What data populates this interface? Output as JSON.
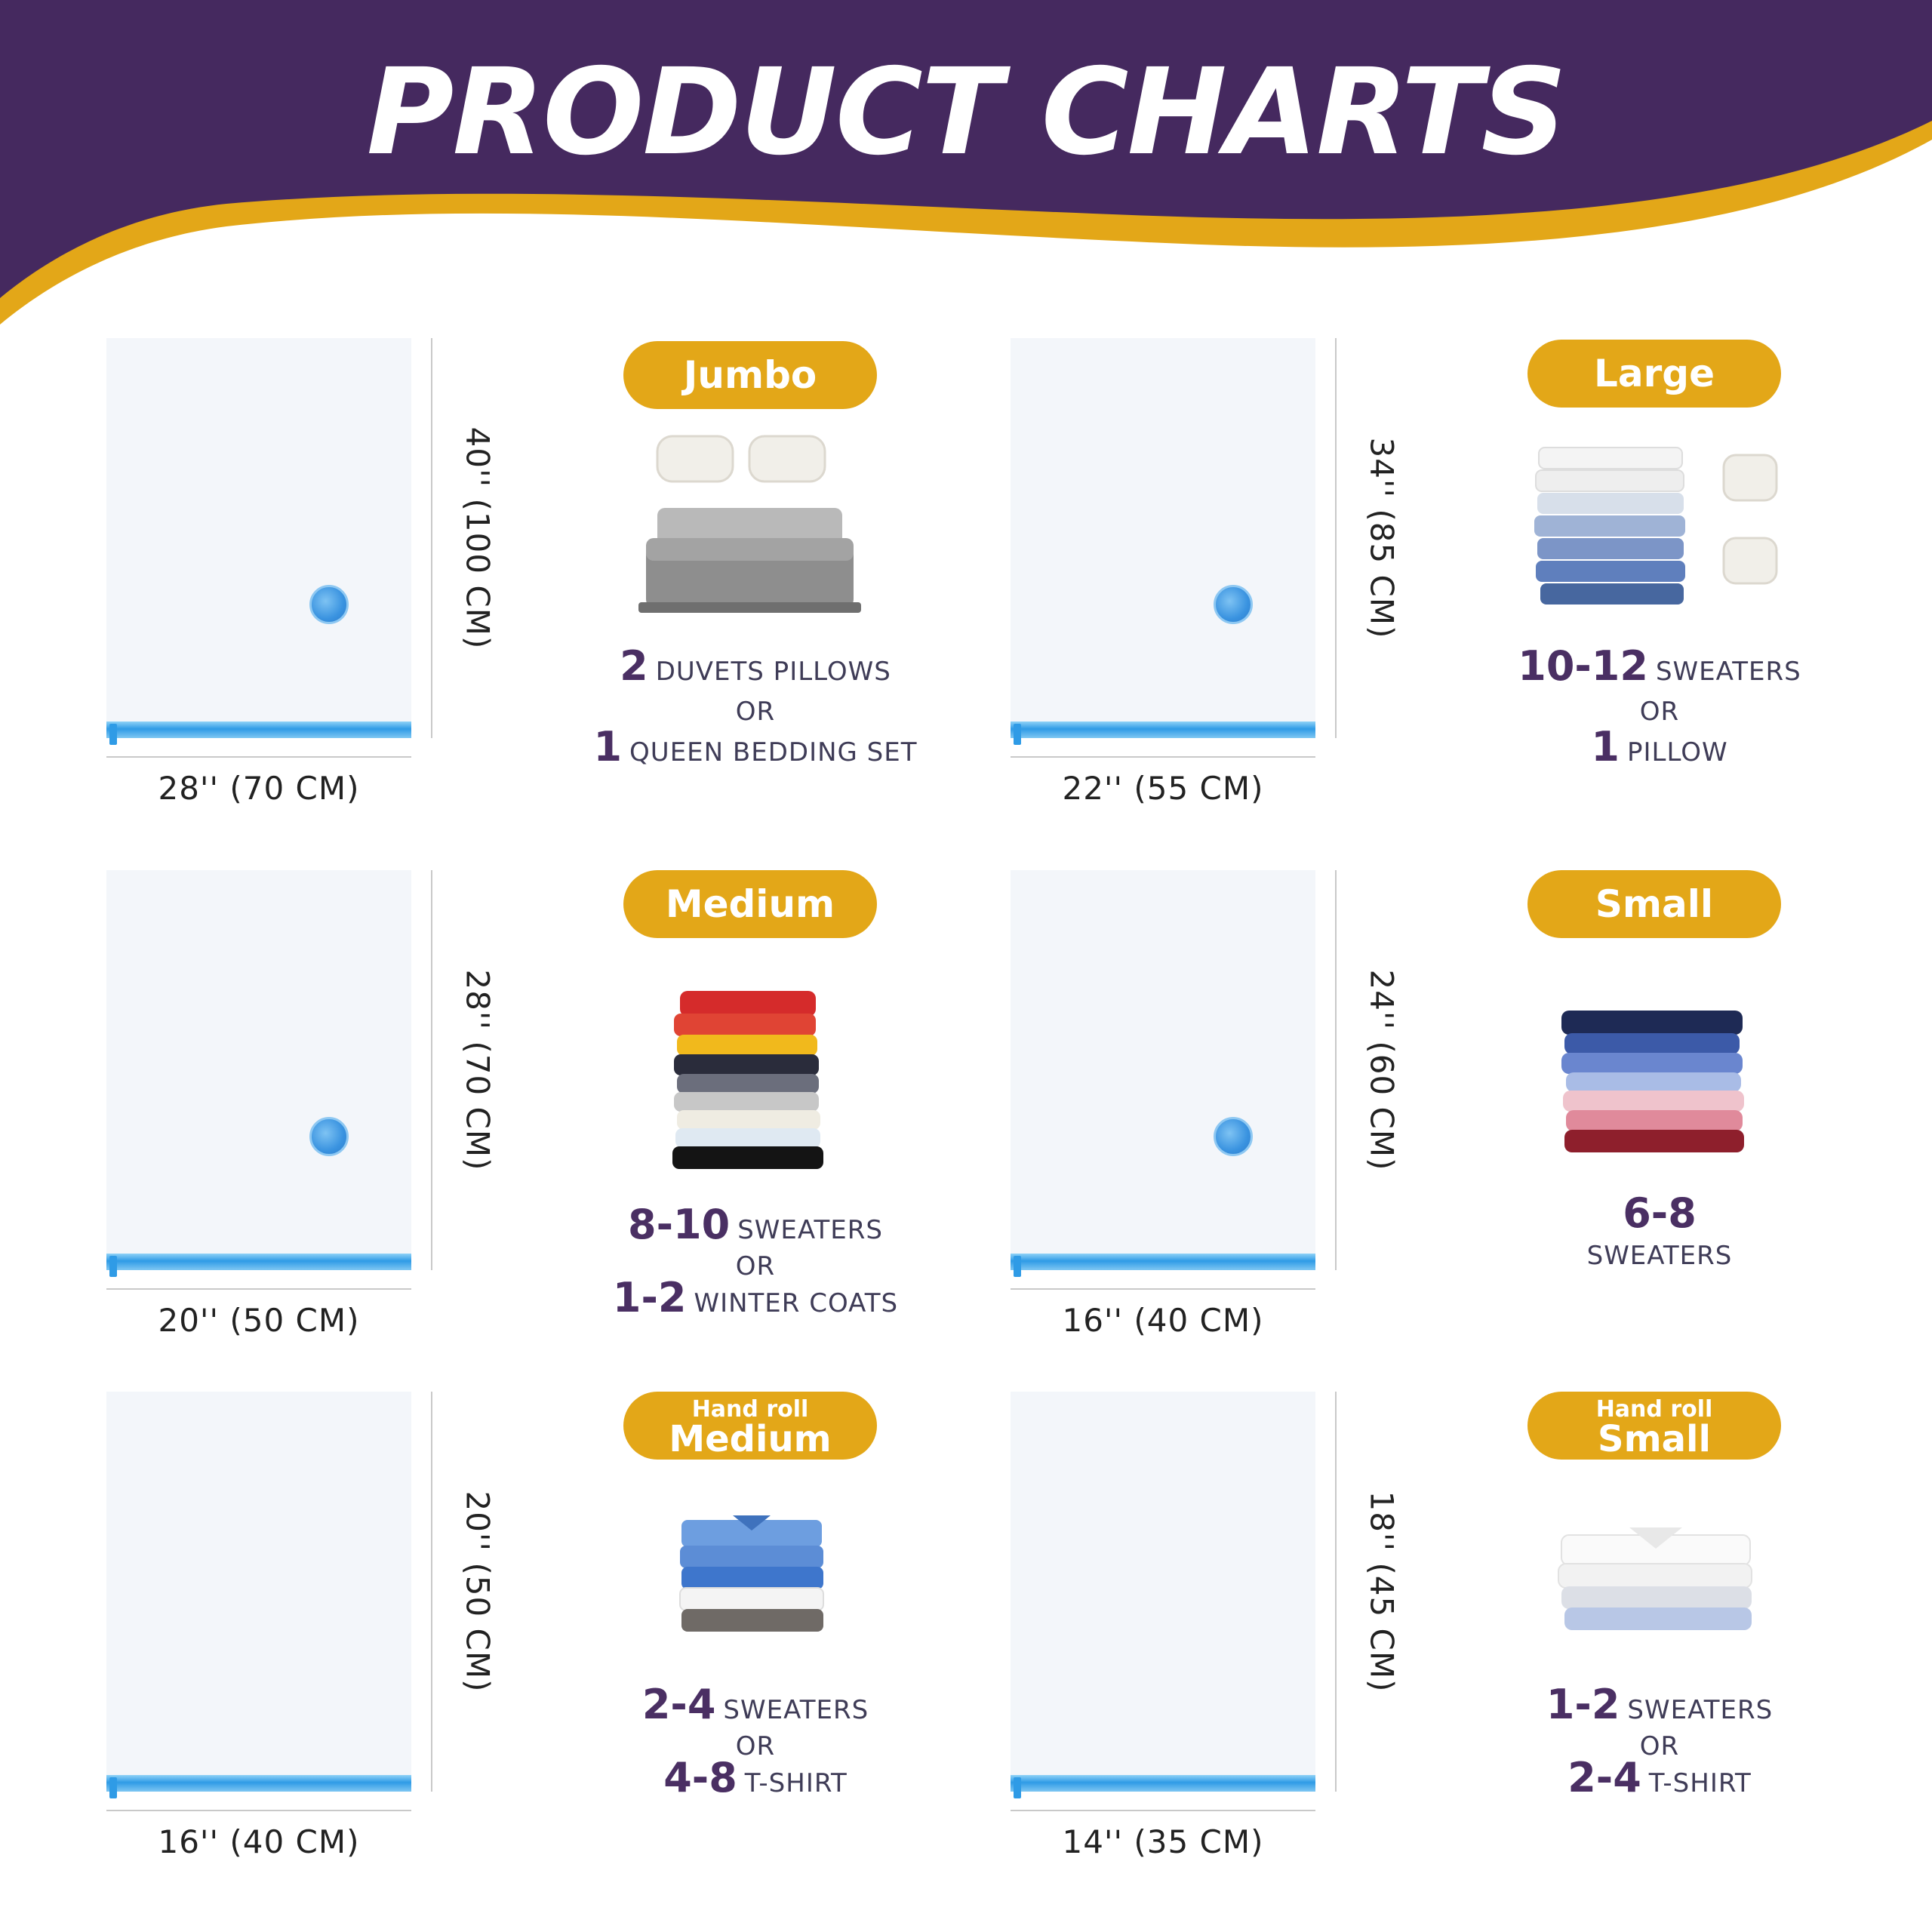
{
  "title": "PRODUCT CHARTS",
  "colors": {
    "banner": "#45295f",
    "accent": "#e3a718",
    "number": "#4a2f63",
    "bag": "#f3f6fa",
    "zipper": "#2f9be6"
  },
  "products": [
    {
      "name": "Jumbo",
      "width_label": "28'' (70 CM)",
      "height_label": "40'' (100 CM)",
      "cap1_num": "2",
      "cap1_unit": "DUVETS PILLOWS",
      "or": "OR",
      "cap2_num": "1",
      "cap2_unit": "QUEEN BEDDING SET",
      "illustration": "bed-with-pillows"
    },
    {
      "name": "Large",
      "width_label": "22'' (55 CM)",
      "height_label": "34'' (85 CM)",
      "cap1_num": "10-12",
      "cap1_unit": "SWEATERS",
      "or": "OR",
      "cap2_num": "1",
      "cap2_unit": "PILLOW",
      "illustration": "shirt-stack-and-pillows"
    },
    {
      "name": "Medium",
      "width_label": "20'' (50 CM)",
      "height_label": "28'' (70 CM)",
      "cap1_num": "8-10",
      "cap1_unit": "SWEATERS",
      "or": "OR",
      "cap2_num": "1-2",
      "cap2_unit": "WINTER COATS",
      "illustration": "colorful-sweater-stack"
    },
    {
      "name": "Small",
      "width_label": "16'' (40 CM)",
      "height_label": "24'' (60 CM)",
      "cap1_num": "6-8",
      "cap1_unit": "SWEATERS",
      "illustration": "sweater-stack"
    },
    {
      "name_small": "Hand roll",
      "name": "Medium",
      "width_label": "16'' (40 CM)",
      "height_label": "20'' (50 CM)",
      "cap1_num": "2-4",
      "cap1_unit": "SWEATERS",
      "or": "OR",
      "cap2_num": "4-8",
      "cap2_unit": "T-SHIRT",
      "illustration": "blue-shirt-stack"
    },
    {
      "name_small": "Hand roll",
      "name": "Small",
      "width_label": "14'' (35 CM)",
      "height_label": "18'' (45 CM)",
      "cap1_num": "1-2",
      "cap1_unit": "SWEATERS",
      "or": "OR",
      "cap2_num": "2-4",
      "cap2_unit": "T-SHIRT",
      "illustration": "white-shirt-stack"
    }
  ]
}
